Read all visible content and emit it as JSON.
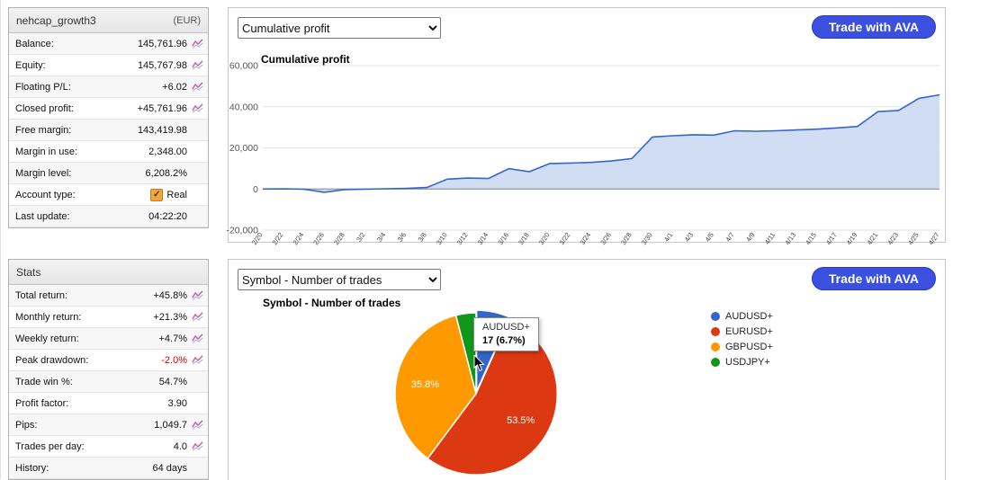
{
  "account": {
    "title": "nehcap_growth3",
    "currency": "(EUR)",
    "rows": [
      {
        "label": "Balance:",
        "value": "145,761.96",
        "icon": true
      },
      {
        "label": "Equity:",
        "value": "145,767.98",
        "icon": true
      },
      {
        "label": "Floating P/L:",
        "value": "+6.02",
        "icon": true
      },
      {
        "label": "Closed profit:",
        "value": "+45,761.96",
        "icon": true
      },
      {
        "label": "Free margin:",
        "value": "143,419.98",
        "icon": false
      },
      {
        "label": "Margin in use:",
        "value": "2,348.00",
        "icon": false
      },
      {
        "label": "Margin level:",
        "value": "6,208.2%",
        "icon": false
      },
      {
        "label": "Account type:",
        "value": "Real",
        "icon": false,
        "checkbox": true
      },
      {
        "label": "Last update:",
        "value": "04:22:20",
        "icon": false
      }
    ]
  },
  "stats": {
    "title": "Stats",
    "rows": [
      {
        "label": "Total return:",
        "value": "+45.8%",
        "icon": true
      },
      {
        "label": "Monthly return:",
        "value": "+21.3%",
        "icon": true
      },
      {
        "label": "Weekly return:",
        "value": "+4.7%",
        "icon": true
      },
      {
        "label": "Peak drawdown:",
        "value": "-2.0%",
        "icon": true,
        "color": "#cc0000"
      },
      {
        "label": "Trade win %:",
        "value": "54.7%",
        "icon": false
      },
      {
        "label": "Profit factor:",
        "value": "3.90",
        "icon": false
      },
      {
        "label": "Pips:",
        "value": "1,049.7",
        "icon": true
      },
      {
        "label": "Trades per day:",
        "value": "4.0",
        "icon": true
      },
      {
        "label": "History:",
        "value": "64 days",
        "icon": false
      }
    ]
  },
  "controls": {
    "top_select_value": "Cumulative profit",
    "bottom_select_value": "Symbol - Number of trades",
    "ava_button_label": "Trade with AVA",
    "button_color": "#3b4fe0"
  },
  "chart_data": [
    {
      "type": "area",
      "title": "Cumulative profit",
      "x_labels": [
        "2/20",
        "2/22",
        "2/24",
        "2/26",
        "2/28",
        "3/2",
        "3/4",
        "3/6",
        "3/8",
        "3/10",
        "3/12",
        "3/14",
        "3/16",
        "3/18",
        "3/20",
        "3/22",
        "3/24",
        "3/26",
        "3/28",
        "3/30",
        "4/1",
        "4/3",
        "4/5",
        "4/7",
        "4/9",
        "4/11",
        "4/13",
        "4/15",
        "4/17",
        "4/19",
        "4/21",
        "4/23",
        "4/25",
        "4/27"
      ],
      "values": [
        0,
        50,
        -100,
        -1600,
        -300,
        -100,
        100,
        300,
        700,
        4800,
        5300,
        5100,
        9900,
        8400,
        12400,
        12600,
        12900,
        13600,
        14800,
        25300,
        25900,
        26400,
        26200,
        28300,
        28100,
        28300,
        28700,
        29100,
        29700,
        30400,
        37600,
        38200,
        44100,
        45800
      ],
      "ylim": [
        -20000,
        60000
      ],
      "yticks": [
        -20000,
        0,
        20000,
        40000,
        60000
      ],
      "ytick_labels": [
        "-20,000",
        "0",
        "20,000",
        "40,000",
        "60,000"
      ],
      "line_color": "#3366cc",
      "fill_color": "#ccd9f2",
      "grid": true,
      "legend_position": "none"
    },
    {
      "type": "pie",
      "title": "Symbol - Number of trades",
      "slices": [
        {
          "name": "AUDUSD+",
          "pct": 6.7,
          "color": "#3366cc",
          "label": "",
          "highlighted": true
        },
        {
          "name": "EURUSD+",
          "pct": 53.5,
          "color": "#dc3912",
          "label": "53.5%"
        },
        {
          "name": "GBPUSD+",
          "pct": 35.8,
          "color": "#ff9900",
          "label": "35.8%"
        },
        {
          "name": "USDJPY+",
          "pct": 4.0,
          "color": "#109618",
          "label": ""
        }
      ],
      "tooltip": {
        "line1": "AUDUSD+",
        "line2": "17 (6.7%)"
      },
      "legend_position": "right"
    }
  ]
}
